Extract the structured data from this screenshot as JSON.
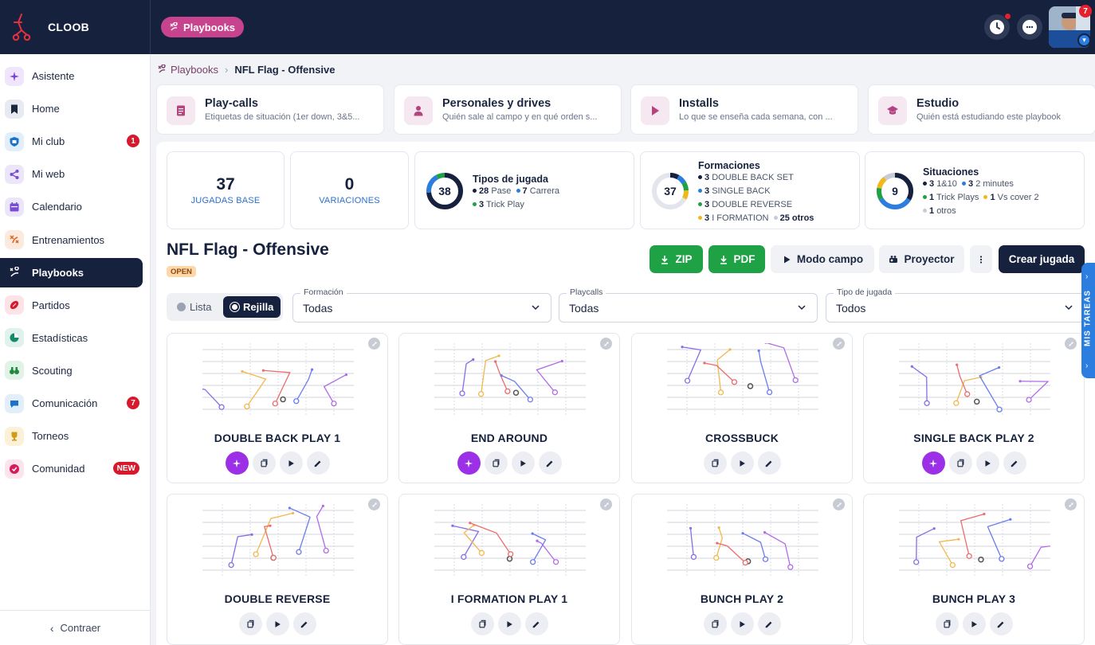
{
  "app": {
    "name": "CLOOB",
    "section_chip": "Playbooks",
    "avatar_badge": "7"
  },
  "sidebar": {
    "items": [
      {
        "label": "Asistente",
        "icon": "sparkles-icon",
        "color": "#7b3fe4",
        "bg": "#efe6fc",
        "badge": ""
      },
      {
        "label": "Home",
        "icon": "bookmark-icon",
        "color": "#1b2740",
        "bg": "#e7eaf1",
        "badge": ""
      },
      {
        "label": "Mi club",
        "icon": "shield-icon",
        "color": "#1a73c9",
        "bg": "#e2effb",
        "badge": "1"
      },
      {
        "label": "Mi web",
        "icon": "share-icon",
        "color": "#7a4ad8",
        "bg": "#ece6fb",
        "badge": ""
      },
      {
        "label": "Calendario",
        "icon": "calendar-icon",
        "color": "#7a4ad8",
        "bg": "#ece6fb",
        "badge": ""
      },
      {
        "label": "Entrenamientos",
        "icon": "drill-icon",
        "color": "#e2631f",
        "bg": "#fdeadf",
        "badge": ""
      },
      {
        "label": "Playbooks",
        "icon": "playbook-icon",
        "color": "#ffffff",
        "bg": "#16213d",
        "badge": "",
        "active": true
      },
      {
        "label": "Partidos",
        "icon": "football-icon",
        "color": "#d8192c",
        "bg": "#fde3e5",
        "badge": ""
      },
      {
        "label": "Estadísticas",
        "icon": "pie-chart-icon",
        "color": "#168a6a",
        "bg": "#dff3ec",
        "badge": ""
      },
      {
        "label": "Scouting",
        "icon": "binoculars-icon",
        "color": "#1f8a3a",
        "bg": "#e1f3e6",
        "badge": ""
      },
      {
        "label": "Comunicación",
        "icon": "chat-icon",
        "color": "#1a73c9",
        "bg": "#e2effb",
        "badge": "7"
      },
      {
        "label": "Torneos",
        "icon": "trophy-icon",
        "color": "#d39b12",
        "bg": "#fbf1d8",
        "badge": ""
      },
      {
        "label": "Comunidad",
        "icon": "heart-icon",
        "color": "#d8195e",
        "bg": "#fde3ec",
        "badge": "NEW"
      }
    ],
    "collapse_label": "Contraer"
  },
  "breadcrumb": {
    "parent": "Playbooks",
    "current": "NFL Flag - Offensive"
  },
  "features": [
    {
      "title": "Play-calls",
      "desc": "Etiquetas de situación (1er down, 3&5...",
      "icon": "document-icon"
    },
    {
      "title": "Personales y drives",
      "desc": "Quién sale al campo y en qué orden s...",
      "icon": "player-icon"
    },
    {
      "title": "Installs",
      "desc": "Lo que se enseña cada semana, con ...",
      "icon": "play-icon"
    },
    {
      "title": "Estudio",
      "desc": "Quién está estudiando este playbook",
      "icon": "graduation-cap-icon"
    }
  ],
  "stats": {
    "base": {
      "value": "37",
      "label": "JUGADAS BASE"
    },
    "variations": {
      "value": "0",
      "label": "VARIACIONES"
    },
    "types": {
      "title": "Tipos de jugada",
      "total": "38",
      "items": [
        {
          "count": "28",
          "label": "Pase",
          "color": "#16213d"
        },
        {
          "count": "7",
          "label": "Carrera",
          "color": "#2b7de0"
        },
        {
          "count": "3",
          "label": "Trick Play",
          "color": "#1fa145"
        }
      ]
    },
    "formations": {
      "title": "Formaciones",
      "total": "37",
      "items": [
        {
          "count": "3",
          "label": "DOUBLE BACK SET",
          "color": "#16213d"
        },
        {
          "count": "3",
          "label": "SINGLE BACK",
          "color": "#2b7de0"
        },
        {
          "count": "3",
          "label": "DOUBLE REVERSE",
          "color": "#1fa145"
        },
        {
          "count": "3",
          "label": "I FORMATION",
          "color": "#f2b81a"
        }
      ],
      "others": "25 otros"
    },
    "situations": {
      "title": "Situaciones",
      "total": "9",
      "items": [
        {
          "count": "3",
          "label": "1&10",
          "color": "#16213d"
        },
        {
          "count": "3",
          "label": "2 minutes",
          "color": "#2b7de0"
        },
        {
          "count": "1",
          "label": "Trick Plays",
          "color": "#1fa145"
        },
        {
          "count": "1",
          "label": "Vs cover 2",
          "color": "#f2b81a"
        },
        {
          "count": "1",
          "label": "otros",
          "color": "#c7cbd4"
        }
      ]
    }
  },
  "playbook": {
    "title": "NFL Flag - Offensive",
    "status": "OPEN"
  },
  "actions": {
    "zip": "ZIP",
    "pdf": "PDF",
    "field_mode": "Modo campo",
    "projector": "Proyector",
    "create": "Crear jugada"
  },
  "view": {
    "list": "Lista",
    "grid": "Rejilla"
  },
  "filters": [
    {
      "label": "Formación",
      "value": "Todas"
    },
    {
      "label": "Playcalls",
      "value": "Todas"
    },
    {
      "label": "Tipo de jugada",
      "value": "Todos"
    }
  ],
  "tasks_tab": "MIS TAREAS",
  "plays": [
    {
      "name": "DOUBLE BACK PLAY 1",
      "ai": true
    },
    {
      "name": "END AROUND",
      "ai": true
    },
    {
      "name": "CROSSBUCK",
      "ai": false
    },
    {
      "name": "SINGLE BACK PLAY 2",
      "ai": true
    },
    {
      "name": "DOUBLE REVERSE",
      "ai": false
    },
    {
      "name": "I FORMATION PLAY 1",
      "ai": false
    },
    {
      "name": "BUNCH PLAY 2",
      "ai": false
    },
    {
      "name": "BUNCH PLAY 3",
      "ai": false
    }
  ]
}
